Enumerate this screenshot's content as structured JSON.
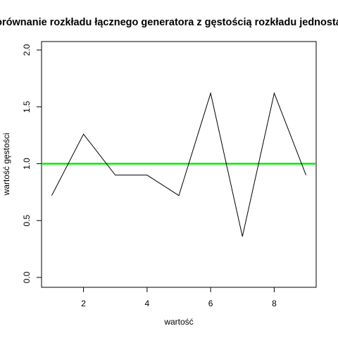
{
  "chart_data": {
    "type": "line",
    "title": "Porównanie rozkładu łącznego generatora z gęstością rozkładu jednostajnego",
    "xlabel": "wartość",
    "ylabel": "wartość gęstości",
    "xlim": [
      0.68,
      9.32
    ],
    "ylim": [
      0,
      2
    ],
    "xticks": [
      2,
      4,
      6,
      8
    ],
    "yticks": [
      0.0,
      0.5,
      1.0,
      1.5,
      2.0
    ],
    "xtick_labels": [
      "2",
      "4",
      "6",
      "8"
    ],
    "ytick_labels": [
      "0.0",
      "0.5",
      "1.0",
      "1.5",
      "2.0"
    ],
    "series": [
      {
        "color": "#000000",
        "x": [
          1,
          2,
          3,
          4,
          5,
          6,
          7,
          8,
          9
        ],
        "values": [
          0.72,
          1.26,
          0.9,
          0.9,
          0.72,
          1.62,
          0.36,
          1.62,
          0.9
        ]
      }
    ],
    "reference_line": {
      "y": 1.0,
      "color": "#00ee00"
    },
    "grid": false,
    "legend": "none"
  }
}
